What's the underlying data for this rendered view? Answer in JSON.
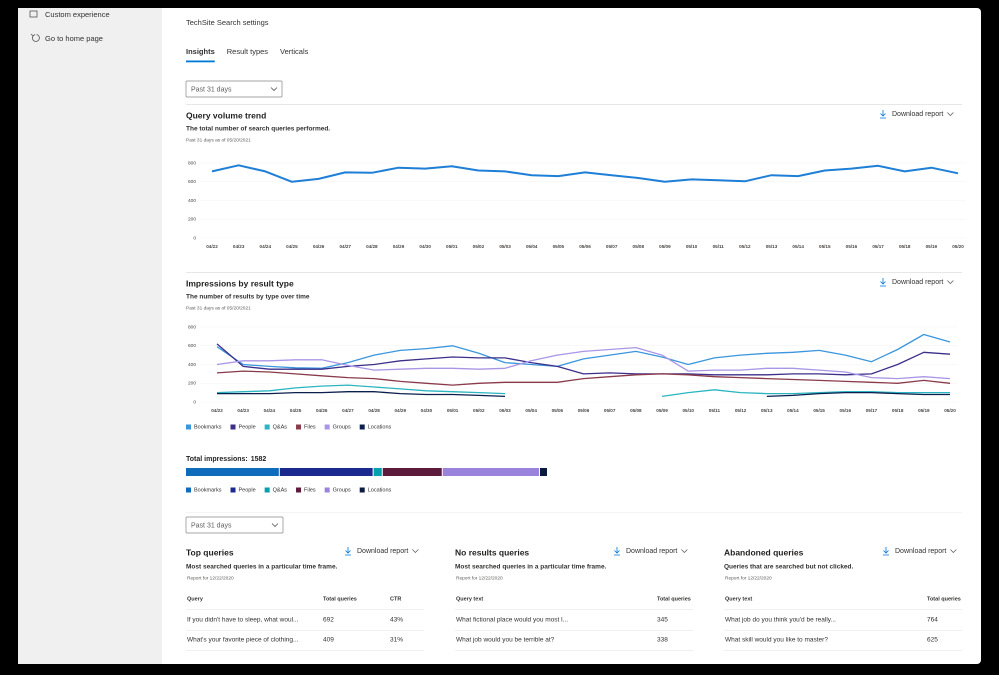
{
  "nav": {
    "items": [
      "Custom experience",
      "Go to home page"
    ]
  },
  "header": {
    "title": "TechSite Search settings"
  },
  "tabs": [
    "Insights",
    "Result types",
    "Verticals"
  ],
  "filters": [
    "Past 31 days",
    "Past 31 days"
  ],
  "chart_data": [
    {
      "type": "line",
      "title": "Query volume trend",
      "subtitle": "The total number of search queries performed.",
      "note": "Past 31 days as of 05/20/2021",
      "download": "Download report",
      "categories": [
        "04/22",
        "04/23",
        "04/24",
        "04/25",
        "04/26",
        "04/27",
        "04/28",
        "04/29",
        "04/30",
        "05/01",
        "05/02",
        "05/03",
        "05/04",
        "05/05",
        "05/06",
        "05/07",
        "05/08",
        "05/09",
        "05/10",
        "05/11",
        "05/12",
        "05/13",
        "05/14",
        "05/15",
        "05/16",
        "05/17",
        "05/18",
        "05/19",
        "05/20"
      ],
      "values": [
        710,
        775,
        710,
        600,
        630,
        700,
        695,
        750,
        740,
        765,
        720,
        710,
        670,
        660,
        700,
        670,
        640,
        600,
        625,
        615,
        605,
        670,
        660,
        720,
        740,
        770,
        710,
        750,
        690
      ],
      "color": "#1f7fd6",
      "ylim": [
        0,
        800
      ],
      "yticks": [
        0,
        200,
        400,
        600,
        800
      ],
      "grid": true
    },
    {
      "type": "line",
      "title": "Impressions by result type",
      "subtitle": "The number of results by type over time",
      "note": "Past 31 days as of 05/20/2021",
      "download": "Download report",
      "categories": [
        "04/22",
        "04/23",
        "04/24",
        "04/25",
        "04/26",
        "04/27",
        "04/28",
        "04/29",
        "04/30",
        "05/01",
        "05/02",
        "05/03",
        "05/04",
        "05/05",
        "05/06",
        "05/07",
        "05/08",
        "05/09",
        "05/10",
        "05/11",
        "05/12",
        "05/13",
        "05/14",
        "05/15",
        "05/16",
        "05/17",
        "05/18",
        "05/19",
        "05/20"
      ],
      "series": [
        {
          "name": "Bookmarks",
          "color": "#3a96dd",
          "values": [
            590,
            400,
            380,
            365,
            360,
            420,
            500,
            550,
            570,
            600,
            520,
            420,
            400,
            380,
            460,
            500,
            540,
            480,
            400,
            470,
            500,
            520,
            530,
            550,
            500,
            430,
            560,
            720,
            640
          ]
        },
        {
          "name": "People",
          "color": "#3b2f8a",
          "values": [
            620,
            380,
            350,
            350,
            350,
            380,
            400,
            440,
            460,
            480,
            470,
            470,
            420,
            380,
            300,
            310,
            300,
            300,
            300,
            290,
            290,
            290,
            300,
            300,
            290,
            300,
            400,
            530,
            510
          ]
        },
        {
          "name": "Q&As",
          "color": "#2bb5c0",
          "values": [
            100,
            110,
            120,
            150,
            170,
            180,
            160,
            140,
            120,
            110,
            100,
            90,
            null,
            null,
            null,
            null,
            null,
            60,
            100,
            130,
            100,
            90,
            90,
            100,
            110,
            110,
            100,
            100,
            100
          ]
        },
        {
          "name": "Files",
          "color": "#8a3a4a",
          "values": [
            310,
            330,
            320,
            300,
            280,
            260,
            250,
            220,
            200,
            180,
            200,
            210,
            210,
            210,
            250,
            270,
            290,
            300,
            290,
            270,
            260,
            250,
            240,
            230,
            220,
            210,
            200,
            230,
            200
          ]
        },
        {
          "name": "Groups",
          "color": "#a996e6",
          "values": [
            400,
            440,
            440,
            450,
            450,
            390,
            340,
            350,
            360,
            360,
            350,
            360,
            440,
            500,
            540,
            560,
            580,
            500,
            330,
            340,
            340,
            360,
            360,
            340,
            320,
            260,
            250,
            270,
            250
          ]
        },
        {
          "name": "Locations",
          "color": "#0b1f4d",
          "values": [
            90,
            90,
            90,
            100,
            100,
            110,
            110,
            90,
            80,
            80,
            70,
            60,
            null,
            null,
            null,
            null,
            null,
            null,
            null,
            null,
            null,
            60,
            70,
            90,
            100,
            100,
            90,
            80,
            80
          ]
        }
      ],
      "ylim": [
        0,
        800
      ],
      "yticks": [
        0,
        200,
        400,
        600,
        800
      ],
      "grid": true
    },
    {
      "type": "stacked_bar",
      "title": "Total impressions:",
      "total": 1582,
      "series": [
        {
          "name": "Bookmarks",
          "color": "#0f6cbd",
          "values": [
            410
          ]
        },
        {
          "name": "People",
          "color": "#1b2a8f",
          "values": [
            410
          ]
        },
        {
          "name": "Q&As",
          "color": "#00a2ad",
          "values": [
            40
          ]
        },
        {
          "name": "Files",
          "color": "#5c1a3d",
          "values": [
            262
          ]
        },
        {
          "name": "Groups",
          "color": "#9a83dd",
          "values": [
            425
          ]
        },
        {
          "name": "Locations",
          "color": "#0b1a3f",
          "values": [
            35
          ]
        }
      ]
    }
  ],
  "cards": [
    {
      "title": "Top queries",
      "download": "Download report",
      "subtitle": "Most searched queries in a particular time frame.",
      "note": "Report for 12/22/2020",
      "columns": [
        "Query",
        "Total queries",
        "CTR"
      ],
      "rows": [
        [
          "If you didn't have to sleep, what woul...",
          692,
          "43%"
        ],
        [
          "What's your favorite piece of clothing...",
          409,
          "31%"
        ]
      ]
    },
    {
      "title": "No results queries",
      "download": "Download report",
      "subtitle": "Most searched queries in a particular time frame.",
      "note": "Report for 12/22/2020",
      "columns": [
        "Query text",
        "Total queries"
      ],
      "rows": [
        [
          "What fictional place would you most l...",
          345
        ],
        [
          "What job would you be terrible at?",
          338
        ]
      ]
    },
    {
      "title": "Abandoned queries",
      "download": "Download report",
      "subtitle": "Queries that are searched but not clicked.",
      "note": "Report for 12/22/2020",
      "columns": [
        "Query text",
        "Total queries"
      ],
      "rows": [
        [
          "What job do you think you'd be really...",
          764
        ],
        [
          "What skill would you like to master?",
          625
        ]
      ]
    }
  ]
}
